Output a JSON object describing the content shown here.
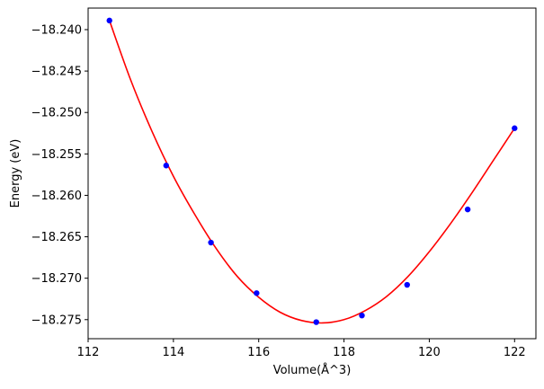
{
  "chart_data": {
    "type": "scatter",
    "title": "",
    "xlabel": "Volume(Å^3)",
    "ylabel": "Energy (eV)",
    "xlim": [
      112,
      122.5
    ],
    "ylim": [
      -18.2773,
      -18.2374
    ],
    "xticks": [
      112,
      114,
      116,
      118,
      120,
      122
    ],
    "xtick_labels": [
      "112",
      "114",
      "116",
      "118",
      "120",
      "122"
    ],
    "yticks": [
      -18.24,
      -18.245,
      -18.25,
      -18.255,
      -18.26,
      -18.265,
      -18.27,
      -18.275
    ],
    "ytick_labels": [
      "−18.240",
      "−18.245",
      "−18.250",
      "−18.255",
      "−18.260",
      "−18.265",
      "−18.270",
      "−18.275"
    ],
    "grid": false,
    "series": [
      {
        "type": "scatter",
        "color": "#0000ff",
        "x": [
          112.5,
          113.83,
          114.88,
          115.95,
          117.35,
          118.42,
          119.48,
          120.9,
          122.0
        ],
        "y": [
          -18.2389,
          -18.2564,
          -18.2657,
          -18.2718,
          -18.2753,
          -18.2745,
          -18.2708,
          -18.2617,
          -18.2519
        ]
      },
      {
        "type": "line",
        "color": "#ff0000",
        "x": [
          112.5,
          113.0,
          113.5,
          114.0,
          114.5,
          115.0,
          115.5,
          116.0,
          116.5,
          117.0,
          117.5,
          118.0,
          118.5,
          119.0,
          119.5,
          120.0,
          120.5,
          121.0,
          121.5,
          122.0
        ],
        "y": [
          -18.2389,
          -18.2461,
          -18.2523,
          -18.2577,
          -18.2623,
          -18.2664,
          -18.2698,
          -18.2723,
          -18.2741,
          -18.2751,
          -18.2754,
          -18.275,
          -18.2739,
          -18.2722,
          -18.2698,
          -18.2668,
          -18.2634,
          -18.2597,
          -18.2558,
          -18.2519
        ]
      }
    ]
  }
}
